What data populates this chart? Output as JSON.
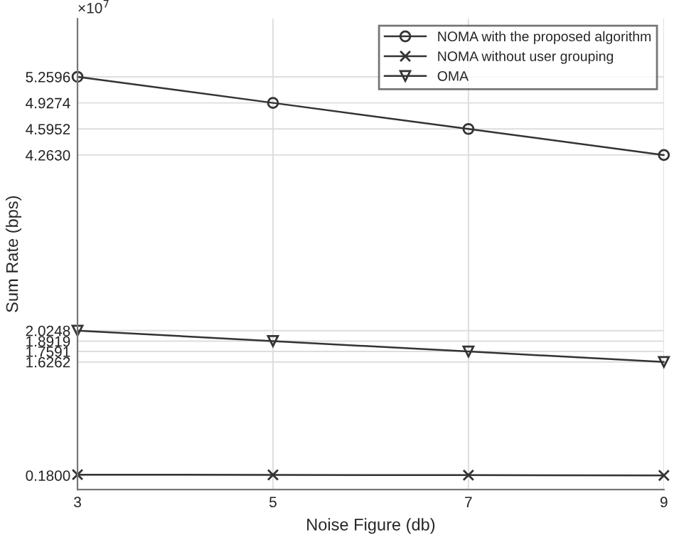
{
  "chart_data": {
    "type": "line",
    "xlabel": "Noise Figure (db)",
    "ylabel": "Sum Rate (bps)",
    "x": [
      3,
      5,
      7,
      9
    ],
    "series": [
      {
        "name": "NOMA with the proposed algorithm",
        "color": "#333333",
        "marker": "circle",
        "values": [
          5.2596,
          4.9274,
          4.5952,
          4.263
        ]
      },
      {
        "name": "NOMA without user grouping",
        "color": "#333333",
        "marker": "cross",
        "values": [
          0.1899,
          0.1866,
          0.1833,
          0.18
        ]
      },
      {
        "name": "OMA",
        "color": "#333333",
        "marker": "triangle",
        "values": [
          2.0248,
          1.8919,
          1.7591,
          1.6262
        ]
      }
    ],
    "xlim": [
      3,
      9
    ],
    "xticks": [
      3,
      5,
      7,
      9
    ],
    "ylim": [
      0,
      6
    ],
    "yticks": [
      {
        "value": 0.18,
        "label": "0.1800"
      },
      {
        "value": 1.6262,
        "label": "1.6262"
      },
      {
        "value": 1.7591,
        "label": "1.7591"
      },
      {
        "value": 1.8919,
        "label": "1.8919"
      },
      {
        "value": 2.0248,
        "label": "2.0248"
      },
      {
        "value": 4.263,
        "label": "4.2630"
      },
      {
        "value": 4.5952,
        "label": "4.5952"
      },
      {
        "value": 4.9274,
        "label": "4.9274"
      },
      {
        "value": 5.2596,
        "label": "5.2596"
      }
    ],
    "annotations": [
      "×10$^{7}$"
    ],
    "grid": true,
    "legend": "top right"
  }
}
